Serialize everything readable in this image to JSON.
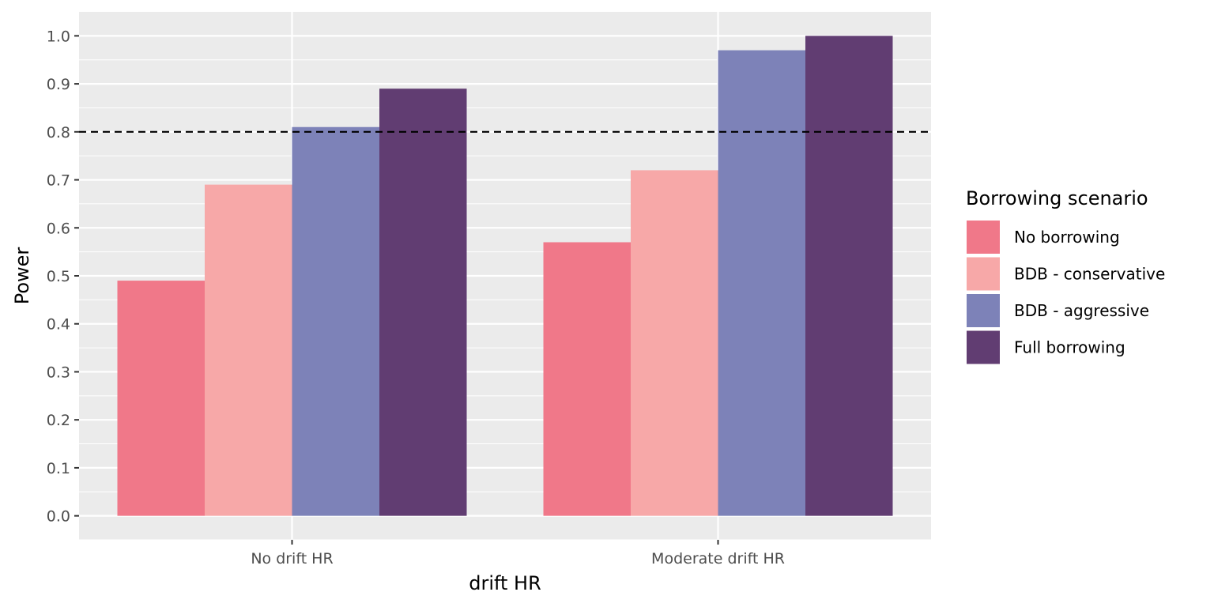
{
  "chart_data": {
    "type": "bar",
    "title": "",
    "xlabel": "drift HR",
    "ylabel": "Power",
    "categories": [
      "No drift HR",
      "Moderate drift HR"
    ],
    "series": [
      {
        "name": "No borrowing",
        "color": "#f07889",
        "values": [
          0.49,
          0.57
        ]
      },
      {
        "name": "BDB - conservative",
        "color": "#f7a8a8",
        "values": [
          0.69,
          0.72
        ]
      },
      {
        "name": "BDB - aggressive",
        "color": "#7d82b8",
        "values": [
          0.81,
          0.97
        ]
      },
      {
        "name": "Full borrowing",
        "color": "#613d72",
        "values": [
          0.89,
          1.0
        ]
      }
    ],
    "ylim": [
      -0.05,
      1.05
    ],
    "yticks": [
      0.0,
      0.1,
      0.2,
      0.3,
      0.4,
      0.5,
      0.6,
      0.7,
      0.8,
      0.9,
      1.0
    ],
    "ytick_labels": [
      "0.0",
      "0.1",
      "0.2",
      "0.3",
      "0.4",
      "0.5",
      "0.6",
      "0.7",
      "0.8",
      "0.9",
      "1.0"
    ],
    "reference_line": {
      "y": 0.8,
      "style": "dashed",
      "color": "#000000"
    },
    "grid": true,
    "panel_background": "#ebebeb",
    "legend": {
      "title": "Borrowing scenario",
      "position": "right"
    }
  }
}
